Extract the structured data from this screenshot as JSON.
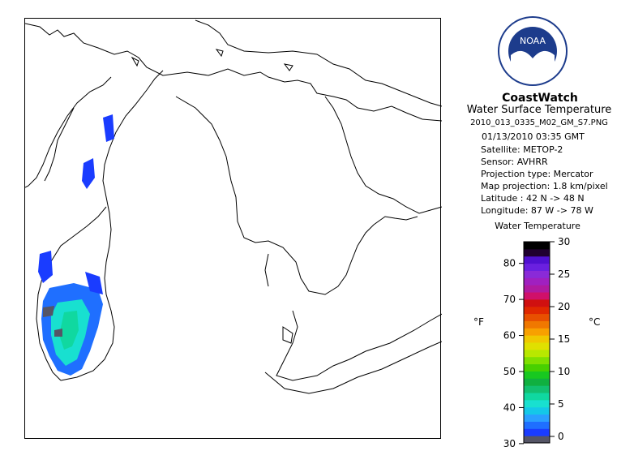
{
  "brand": "CoastWatch",
  "subtitle": "Water Surface Temperature",
  "filename": "2010_013_0335_M02_GM_S7.PNG",
  "datetime": "01/13/2010   03:35 GMT",
  "metadata": [
    "Satellite: METOP-2",
    "Sensor: AVHRR",
    "Projection type:  Mercator",
    "Map projection: 1.8 km/pixel",
    "Latitude : 42 N -> 48 N",
    "Longitude: 87 W -> 78 W"
  ],
  "logo": {
    "text": "NOAA",
    "icon": "noaa-seagull-icon",
    "colors": {
      "sky": "#1d3c8c",
      "gull": "#ffffff",
      "ring": "#ffffff"
    }
  },
  "legend": {
    "title": "Water Temperature",
    "unit_f": "°F",
    "unit_c": "°C",
    "celsius_ticks": [
      0,
      5,
      10,
      15,
      20,
      25,
      30
    ],
    "fahrenheit_ticks": [
      30,
      40,
      50,
      60,
      70,
      80
    ],
    "range_c": [
      -1,
      30
    ],
    "colors": [
      "#555566",
      "#1a3cff",
      "#1f6fff",
      "#2aa0ff",
      "#14c8e8",
      "#18e0d0",
      "#10d8a0",
      "#12c070",
      "#10b040",
      "#18c820",
      "#48d000",
      "#80e000",
      "#b8e800",
      "#e0e000",
      "#f0c800",
      "#f8a000",
      "#f07800",
      "#e85000",
      "#e02800",
      "#d01010",
      "#d0106a",
      "#b01aa0",
      "#a020c0",
      "#8a2ad8",
      "#6a20e0",
      "#5010d0",
      "#200030",
      "#000000"
    ]
  }
}
